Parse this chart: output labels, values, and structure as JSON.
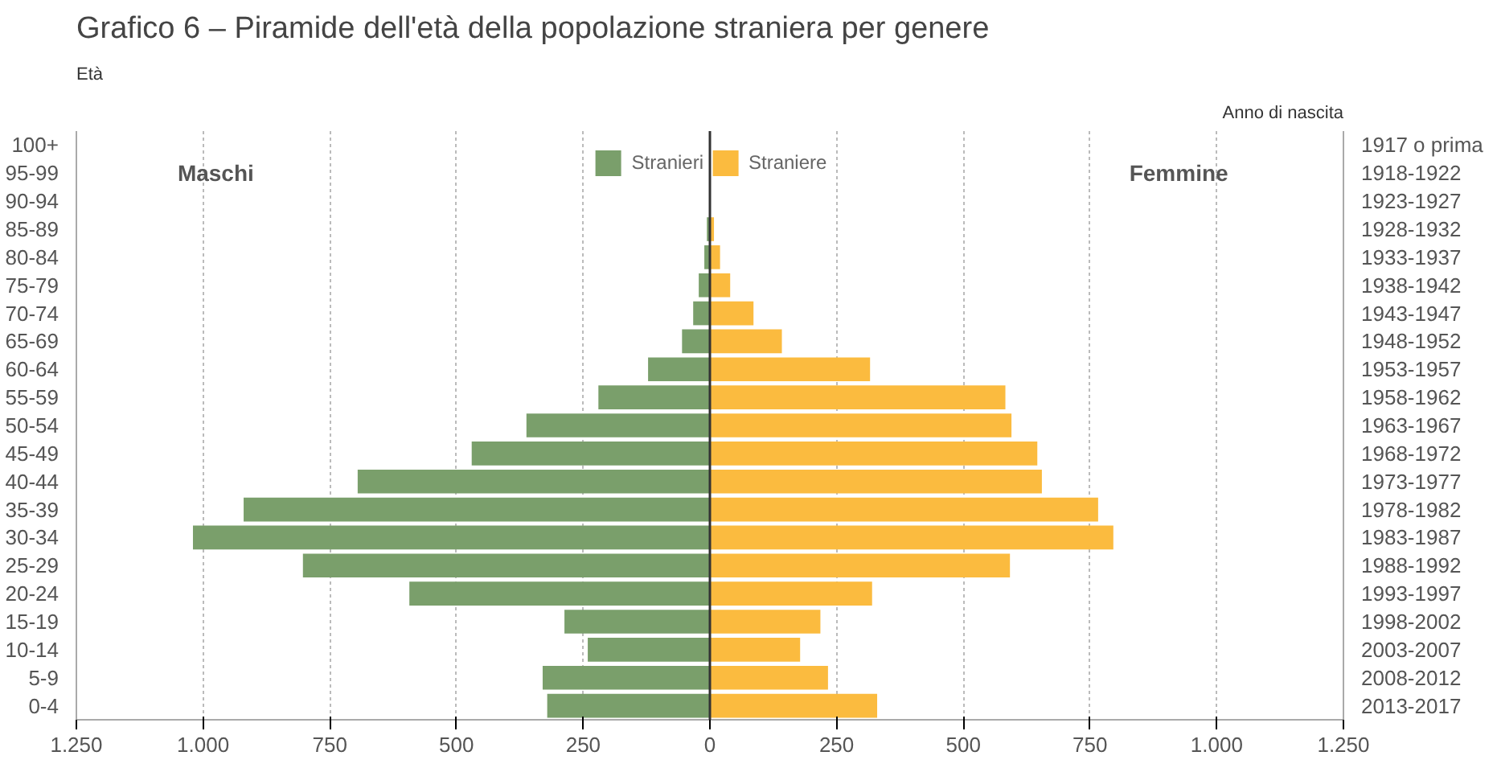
{
  "chart_data": {
    "type": "bar",
    "orientation": "horizontal",
    "title": "Grafico 6 – Piramide dell'età della popolazione straniera per genere",
    "ylabel": "Età",
    "y2label": "Anno di nascita",
    "categories": [
      "100+",
      "95-99",
      "90-94",
      "85-89",
      "80-84",
      "75-79",
      "70-74",
      "65-69",
      "60-64",
      "55-59",
      "50-54",
      "45-49",
      "40-44",
      "35-39",
      "30-34",
      "25-29",
      "20-24",
      "15-19",
      "10-14",
      "5-9",
      "0-4"
    ],
    "y2_categories": [
      "1917 o prima",
      "1918-1922",
      "1923-1927",
      "1928-1932",
      "1933-1937",
      "1938-1942",
      "1943-1947",
      "1948-1952",
      "1953-1957",
      "1958-1962",
      "1963-1967",
      "1968-1972",
      "1973-1977",
      "1978-1982",
      "1983-1987",
      "1988-1992",
      "1993-1997",
      "1998-2002",
      "2003-2007",
      "2008-2012",
      "2013-2017"
    ],
    "series": [
      {
        "name": "Stranieri",
        "color": "#7a9f6b",
        "values": [
          0,
          0,
          0,
          -6,
          -11,
          -22,
          -33,
          -55,
          -122,
          -220,
          -362,
          -470,
          -695,
          -920,
          -1020,
          -803,
          -593,
          -287,
          -241,
          -330,
          -321
        ]
      },
      {
        "name": "Straniere",
        "color": "#fbbb3f",
        "values": [
          0,
          0,
          0,
          8,
          20,
          40,
          86,
          142,
          316,
          583,
          595,
          646,
          655,
          766,
          796,
          592,
          320,
          218,
          178,
          233,
          330
        ]
      }
    ],
    "xlim": [
      -1250,
      1250
    ],
    "xticks": [
      {
        "value": -1250,
        "label": "1.250"
      },
      {
        "value": -1000,
        "label": "1.000"
      },
      {
        "value": -750,
        "label": "750"
      },
      {
        "value": -500,
        "label": "500"
      },
      {
        "value": -250,
        "label": "250"
      },
      0,
      250,
      500,
      750,
      {
        "value": 1000,
        "label": "1.000"
      },
      {
        "value": 1250,
        "label": "1.250"
      }
    ],
    "annotations": [
      "Maschi",
      "Femmine"
    ],
    "stacked": true,
    "grid": "x",
    "legend": "top"
  }
}
